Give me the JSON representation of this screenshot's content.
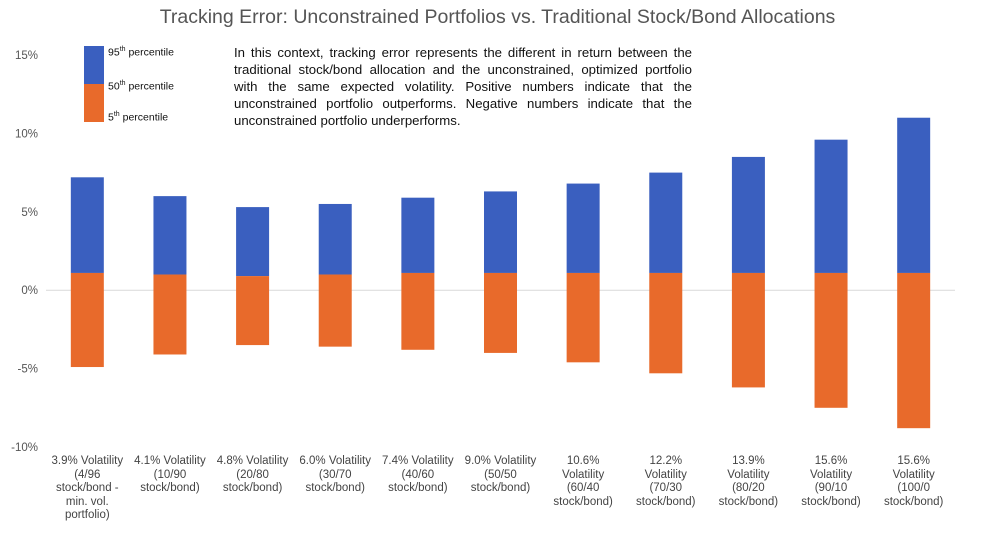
{
  "chart_data": {
    "type": "bar",
    "title": "Tracking Error: Unconstrained Portfolios vs. Traditional Stock/Bond Allocations",
    "ylim": [
      -10,
      15
    ],
    "yticks": [
      "15%",
      "10%",
      "5%",
      "0%",
      "-5%",
      "-10%"
    ],
    "ytick_values": [
      15,
      10,
      5,
      0,
      -5,
      -10
    ],
    "categories": [
      "3.9% Volatility\n(4/96\nstock/bond -\nmin. vol.\nportfolio)",
      "4.1% Volatility\n(10/90\nstock/bond)",
      "4.8% Volatility\n(20/80\nstock/bond)",
      "6.0% Volatility\n(30/70\nstock/bond)",
      "7.4% Volatility\n(40/60\nstock/bond)",
      "9.0% Volatility\n(50/50\nstock/bond)",
      "10.6%\nVolatility\n(60/40\nstock/bond)",
      "12.2%\nVolatility\n(70/30\nstock/bond)",
      "13.9%\nVolatility\n(80/20\nstock/bond)",
      "15.6%\nVolatility\n(90/10\nstock/bond)",
      "15.6%\nVolatility\n(100/0\nstock/bond)"
    ],
    "series": [
      {
        "name": "95th percentile",
        "values": [
          7.2,
          6.0,
          5.3,
          5.5,
          5.9,
          6.3,
          6.8,
          7.5,
          8.5,
          9.6,
          11.0
        ]
      },
      {
        "name": "50th percentile",
        "values": [
          1.1,
          1.0,
          0.9,
          1.0,
          1.1,
          1.1,
          1.1,
          1.1,
          1.1,
          1.1,
          1.1
        ]
      },
      {
        "name": "5th percentile",
        "values": [
          -4.9,
          -4.1,
          -3.5,
          -3.6,
          -3.8,
          -4.0,
          -4.6,
          -5.3,
          -6.2,
          -7.5,
          -8.8
        ]
      }
    ],
    "legend": [
      {
        "label": "95",
        "suffix": "th",
        "rest": " percentile",
        "color": "#3a5fbf"
      },
      {
        "label": "50",
        "suffix": "th",
        "rest": " percentile",
        "color": "#e86a2b"
      },
      {
        "label": "5",
        "suffix": "th",
        "rest": " percentile",
        "color": "#e86a2b"
      }
    ],
    "annotation": "In this context, tracking error represents the different in return between the traditional stock/bond allocation and the unconstrained, optimized portfolio with the same expected volatility.  Positive numbers indicate that the unconstrained portfolio outperforms.  Negative numbers indicate that the unconstrained portfolio underperforms.",
    "colors": {
      "upper": "#3a5fbf",
      "lower": "#e86a2b",
      "grid": "#d9d9d9"
    },
    "legend_position": "top-left"
  }
}
